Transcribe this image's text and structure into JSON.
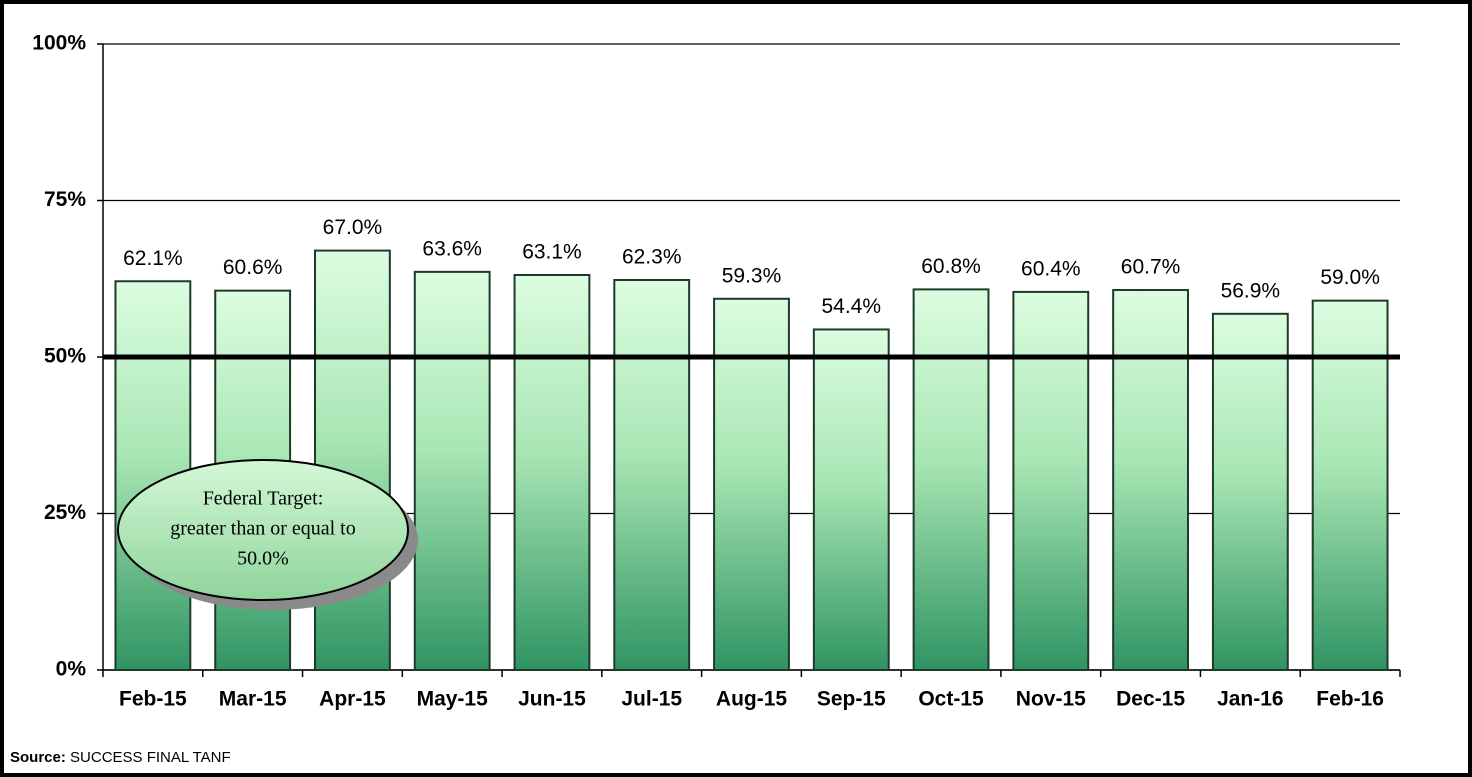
{
  "chart_data": {
    "type": "bar",
    "categories": [
      "Feb-15",
      "Mar-15",
      "Apr-15",
      "May-15",
      "Jun-15",
      "Jul-15",
      "Aug-15",
      "Sep-15",
      "Oct-15",
      "Nov-15",
      "Dec-15",
      "Jan-16",
      "Feb-16"
    ],
    "values": [
      62.1,
      60.6,
      67.0,
      63.6,
      63.1,
      62.3,
      59.3,
      54.4,
      60.8,
      60.4,
      60.7,
      56.9,
      59.0
    ],
    "value_labels": [
      "62.1%",
      "60.6%",
      "67.0%",
      "63.6%",
      "63.1%",
      "62.3%",
      "59.3%",
      "54.4%",
      "60.8%",
      "60.4%",
      "60.7%",
      "56.9%",
      "59.0%"
    ],
    "color": "#3f9e6c",
    "ylim": [
      0,
      100
    ],
    "yticks": [
      {
        "value": 0,
        "label": "0%"
      },
      {
        "value": 25,
        "label": "25%"
      },
      {
        "value": 50,
        "label": "50%"
      },
      {
        "value": 75,
        "label": "75%"
      },
      {
        "value": 100,
        "label": "100%"
      }
    ],
    "grid": true,
    "target_line": 50,
    "annotation": [
      "Federal Target:",
      "greater than or equal to",
      "50.0%"
    ],
    "source_label": "Source:",
    "source": "SUCCESS FINAL TANF"
  }
}
